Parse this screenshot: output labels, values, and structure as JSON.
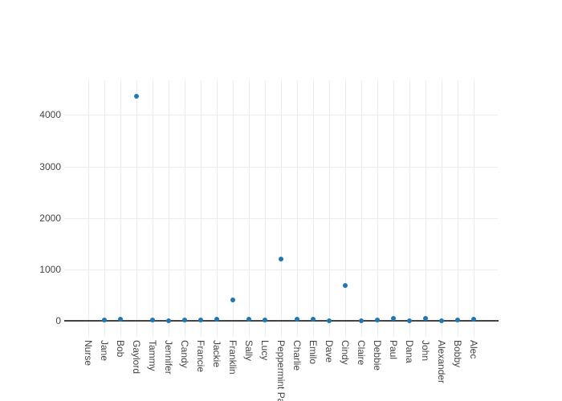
{
  "chart_data": {
    "type": "scatter",
    "title": "",
    "xlabel": "",
    "ylabel": "",
    "grid": true,
    "legend": "none",
    "marker_color": "#1f77b4",
    "grid_color": "#ececec",
    "zeroline_color": "#444444",
    "tick_label_color": "#444444",
    "background_color": "#ffffff",
    "yticks": [
      0,
      1000,
      2000,
      3000,
      4000
    ],
    "ytick_labels": [
      "0",
      "1000",
      "2000",
      "3000",
      "4000"
    ],
    "ylim": [
      -312,
      4676
    ],
    "categories": [
      "Nurse",
      "Jane",
      "Bob",
      "Gaylord",
      "Tammy",
      "Jennifer",
      "Candy",
      "Francie",
      "Jackie",
      "Franklin",
      "Sally",
      "Lucy",
      "Peppermint Patty",
      "Charlie",
      "Emilo",
      "Dave",
      "Cindy",
      "Claire",
      "Debbie",
      "Paul",
      "Dana",
      "John",
      "Alexander",
      "Bobby",
      "Alec"
    ],
    "values": [
      null,
      8,
      35,
      4365,
      8,
      0,
      8,
      12,
      26,
      410,
      26,
      12,
      1200,
      35,
      26,
      0,
      690,
      0,
      12,
      42,
      0,
      42,
      0,
      8,
      35
    ]
  }
}
